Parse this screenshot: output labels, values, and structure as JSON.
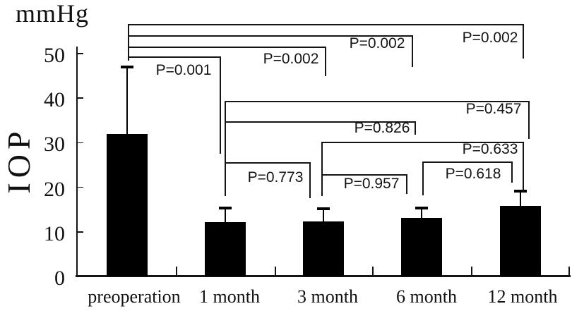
{
  "chart_data": {
    "type": "bar",
    "title": "",
    "y_unit_label": "mmHg",
    "y_axis_title": "IOP",
    "xlabel": "",
    "categories": [
      "preoperation",
      "1 month",
      "3 month",
      "6 month",
      "12 month"
    ],
    "values": [
      32.0,
      12.2,
      12.3,
      13.2,
      15.8
    ],
    "error_bar_tops": [
      47.0,
      15.3,
      15.2,
      15.3,
      19.2
    ],
    "ylim": [
      0,
      50
    ],
    "yticks": [
      0,
      10,
      20,
      30,
      40,
      50
    ],
    "grid": false,
    "legend": "none",
    "bar_color": "#000000",
    "line_color": "#141414",
    "background_color": "#ffffff",
    "comparisons": [
      {
        "pair": "preoperation vs 12 month",
        "p_label": "P=0.002"
      },
      {
        "pair": "preoperation vs 6 month",
        "p_label": "P=0.002"
      },
      {
        "pair": "preoperation vs 3 month",
        "p_label": "P=0.002"
      },
      {
        "pair": "preoperation vs 1 month",
        "p_label": "P=0.001"
      },
      {
        "pair": "1 month vs 12 month",
        "p_label": "P=0.457"
      },
      {
        "pair": "1 month vs 6 month",
        "p_label": "P=0.826"
      },
      {
        "pair": "1 month vs 3 month",
        "p_label": "P=0.773"
      },
      {
        "pair": "3 month vs 12 month",
        "p_label": "P=0.633"
      },
      {
        "pair": "3 month vs 6 month",
        "p_label": "P=0.957"
      },
      {
        "pair": "6 month vs 12 month",
        "p_label": "P=0.618"
      }
    ]
  }
}
